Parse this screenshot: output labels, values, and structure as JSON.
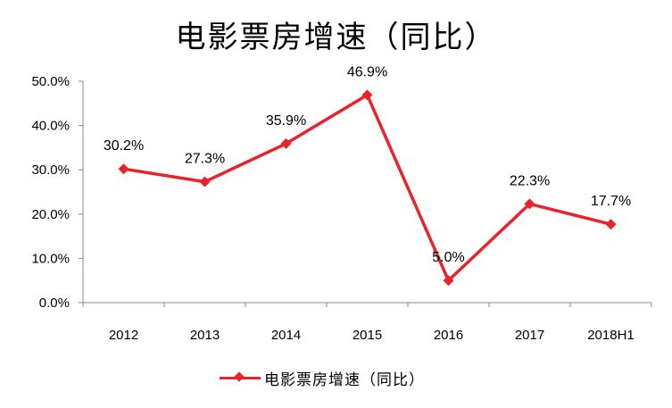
{
  "chart_data": {
    "type": "line",
    "title": "电影票房增速（同比）",
    "categories": [
      "2012",
      "2013",
      "2014",
      "2015",
      "2016",
      "2017",
      "2018H1"
    ],
    "series": [
      {
        "name": "电影票房增速（同比）",
        "values": [
          30.2,
          27.3,
          35.9,
          46.9,
          5.0,
          22.3,
          17.7
        ],
        "labels": [
          "30.2%",
          "27.3%",
          "35.9%",
          "46.9%",
          "5.0%",
          "22.3%",
          "17.7%"
        ],
        "color": "#e8232b",
        "marker": "diamond"
      }
    ],
    "yticks": [
      "0.0%",
      "10.0%",
      "20.0%",
      "30.0%",
      "40.0%",
      "50.0%"
    ],
    "ylim": [
      0,
      50
    ],
    "xlabel": "",
    "ylabel": "",
    "grid": false,
    "legend": "bottom"
  }
}
